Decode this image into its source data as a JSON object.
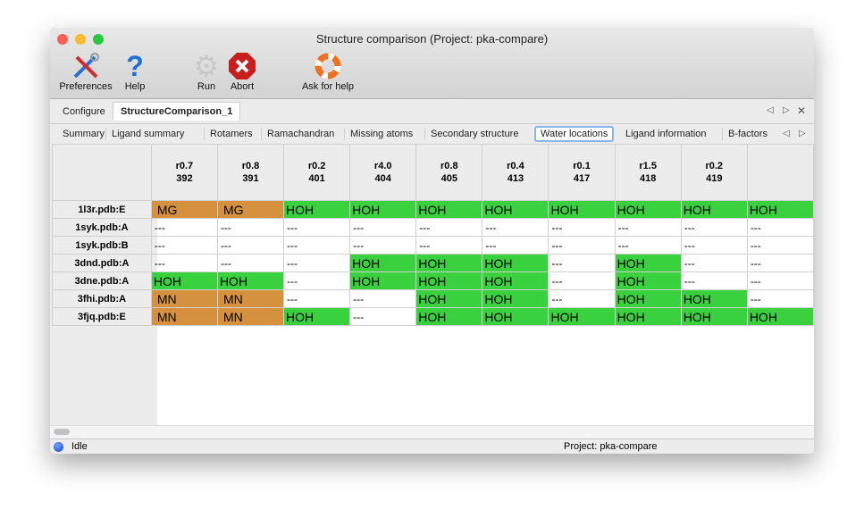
{
  "window": {
    "title": "Structure comparison (Project: pka-compare)"
  },
  "toolbar": [
    {
      "label": "Preferences",
      "icon": "wrench-screwdriver-icon"
    },
    {
      "label": "Help",
      "icon": "question-icon"
    },
    {
      "label": "Run",
      "icon": "gear-icon"
    },
    {
      "label": "Abort",
      "icon": "stop-x-icon"
    },
    {
      "label": "Ask for help",
      "icon": "lifebuoy-icon"
    }
  ],
  "tabs": [
    {
      "label": "Configure"
    },
    {
      "label": "StructureComparison_1",
      "active": true
    }
  ],
  "subtabs": [
    {
      "label": "Summary"
    },
    {
      "label": "Ligand summary"
    },
    {
      "label": "Rotamers"
    },
    {
      "label": "Ramachandran"
    },
    {
      "label": "Missing atoms"
    },
    {
      "label": "Secondary structure"
    },
    {
      "label": "Water locations",
      "active": true
    },
    {
      "label": "Ligand information"
    },
    {
      "label": "B-factors"
    }
  ],
  "table": {
    "columns": [
      [
        "r0.7",
        "392"
      ],
      [
        "r0.8",
        "391"
      ],
      [
        "r0.2",
        "401"
      ],
      [
        "r4.0",
        "404"
      ],
      [
        "r0.8",
        "405"
      ],
      [
        "r0.4",
        "413"
      ],
      [
        "r0.1",
        "417"
      ],
      [
        "r1.5",
        "418"
      ],
      [
        "r0.2",
        "419"
      ],
      [
        "",
        ""
      ]
    ],
    "rows": [
      {
        "label": "1l3r.pdb:E",
        "cells": [
          "MG",
          "MG",
          "HOH",
          "HOH",
          "HOH",
          "HOH",
          "HOH",
          "HOH",
          "HOH",
          "HOH"
        ]
      },
      {
        "label": "1syk.pdb:A",
        "cells": [
          "---",
          "---",
          "---",
          "---",
          "---",
          "---",
          "---",
          "---",
          "---",
          "---"
        ]
      },
      {
        "label": "1syk.pdb:B",
        "cells": [
          "---",
          "---",
          "---",
          "---",
          "---",
          "---",
          "---",
          "---",
          "---",
          "---"
        ]
      },
      {
        "label": "3dnd.pdb:A",
        "cells": [
          "---",
          "---",
          "---",
          "HOH",
          "HOH",
          "HOH",
          "---",
          "HOH",
          "---",
          "---"
        ]
      },
      {
        "label": "3dne.pdb:A",
        "cells": [
          "HOH",
          "HOH",
          "---",
          "HOH",
          "HOH",
          "HOH",
          "---",
          "HOH",
          "---",
          "---"
        ]
      },
      {
        "label": "3fhi.pdb:A",
        "cells": [
          "MN",
          "MN",
          "---",
          "---",
          "HOH",
          "HOH",
          "---",
          "HOH",
          "HOH",
          "---"
        ]
      },
      {
        "label": "3fjq.pdb:E",
        "cells": [
          "MN",
          "MN",
          "HOH",
          "---",
          "HOH",
          "HOH",
          "HOH",
          "HOH",
          "HOH",
          "HOH"
        ]
      }
    ]
  },
  "colors": {
    "water": "#3ad13f",
    "ion": "#d6913f"
  },
  "status": {
    "state": "Idle",
    "project": "Project: pka-compare"
  }
}
